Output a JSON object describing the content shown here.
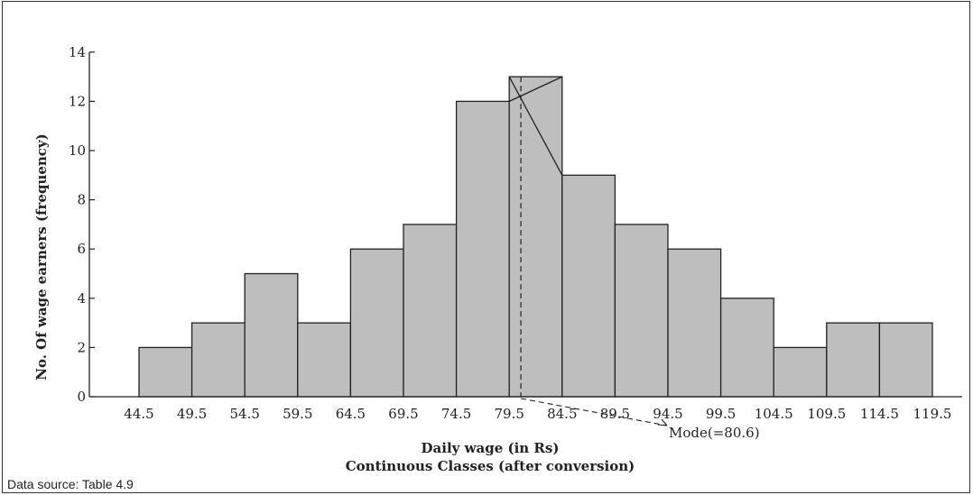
{
  "chart_data": {
    "type": "bar",
    "title": "",
    "xlabel": "Daily wage (in Rs)",
    "xlabel_sub": "Continuous Classes (after conversion)",
    "ylabel": "No. Of wage earners (frequency)",
    "ylim": [
      0,
      14
    ],
    "yticks": [
      0,
      2,
      4,
      6,
      8,
      10,
      12,
      14
    ],
    "class_boundaries": [
      44.5,
      49.5,
      54.5,
      59.5,
      64.5,
      69.5,
      74.5,
      79.5,
      84.5,
      89.5,
      94.5,
      99.5,
      104.5,
      109.5,
      114.5,
      119.5
    ],
    "xtick_labels": [
      "44.5",
      "49.5",
      "54.5",
      "59.5",
      "64.5",
      "69.5",
      "74.5",
      "79.5",
      "84.5",
      "89.5",
      "94.5",
      "99.5",
      "104.5",
      "109.5",
      "114.5",
      "119.5"
    ],
    "values": [
      2,
      3,
      5,
      3,
      6,
      7,
      12,
      13,
      9,
      7,
      6,
      4,
      2,
      3,
      3
    ],
    "annotations": {
      "mode_label": "Mode(=80.6)",
      "mode_value": 80.6
    },
    "grid": false,
    "legend": "none",
    "colors": {
      "bar": "#bebebe",
      "edge": "#222222"
    }
  },
  "footer": {
    "source": "Data source: Table 4.9"
  }
}
